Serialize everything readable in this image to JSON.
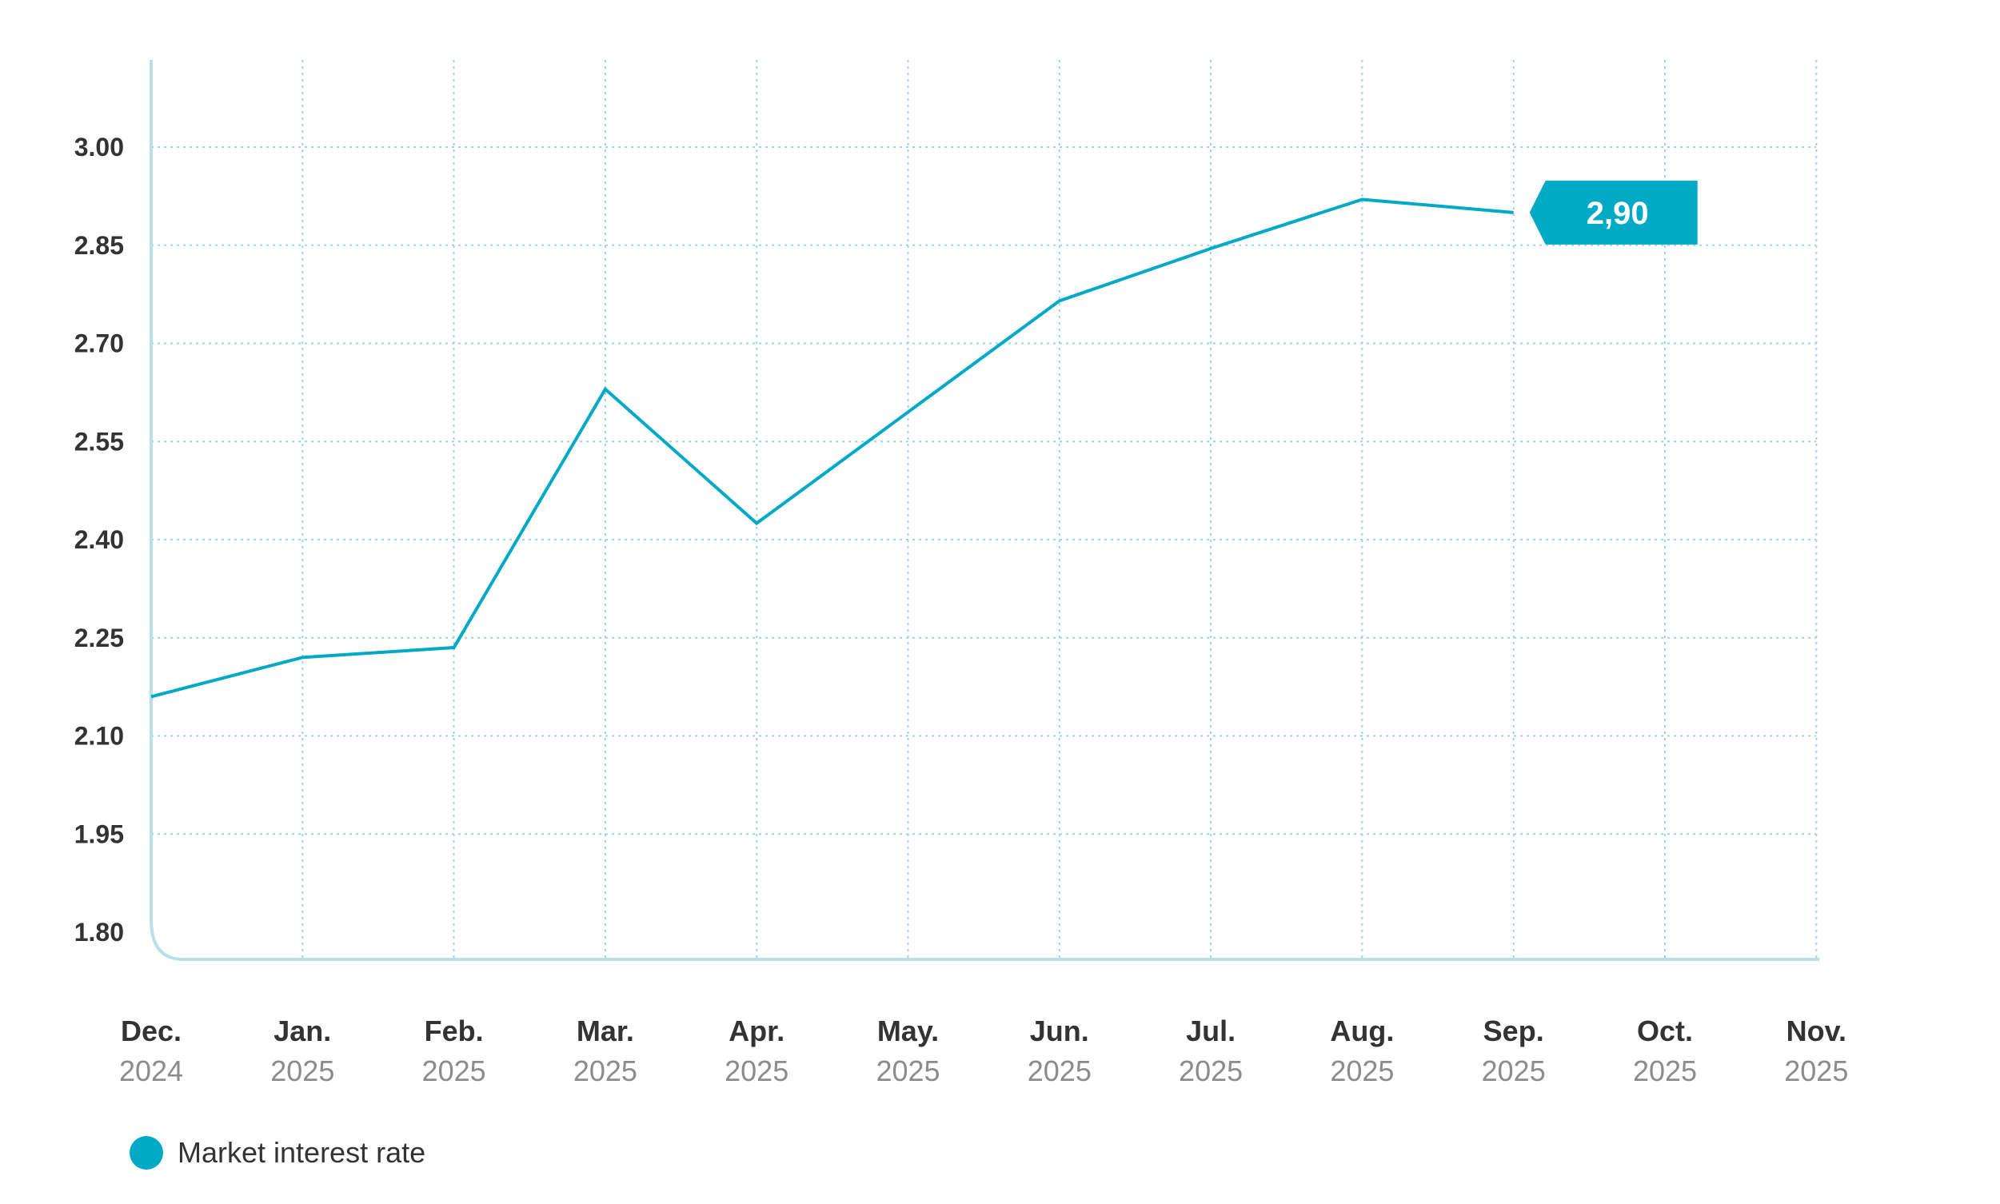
{
  "chart_data": {
    "type": "line",
    "x": [
      "Dec. 2024",
      "Jan. 2025",
      "Feb. 2025",
      "Mar. 2025",
      "Apr. 2025",
      "May. 2025",
      "Jun. 2025",
      "Jul. 2025",
      "Aug. 2025",
      "Sep. 2025",
      "Oct. 2025",
      "Nov. 2025"
    ],
    "x_months": [
      "Dec.",
      "Jan.",
      "Feb.",
      "Mar.",
      "Apr.",
      "May.",
      "Jun.",
      "Jul.",
      "Aug.",
      "Sep.",
      "Oct.",
      "Nov."
    ],
    "x_years": [
      "2024",
      "2025",
      "2025",
      "2025",
      "2025",
      "2025",
      "2025",
      "2025",
      "2025",
      "2025",
      "2025",
      "2025"
    ],
    "y_ticks": [
      "1.80",
      "1.95",
      "2.10",
      "2.25",
      "2.40",
      "2.55",
      "2.70",
      "2.85",
      "3.00"
    ],
    "ylim": [
      1.76,
      3.13
    ],
    "series": [
      {
        "name": "Market interest rate",
        "color": "#00a9c5",
        "values": [
          2.16,
          2.22,
          2.235,
          2.63,
          2.425,
          2.595,
          2.765,
          2.845,
          2.92,
          2.9,
          null,
          null
        ]
      }
    ],
    "callout": {
      "label": "2,90",
      "x_index": 9
    },
    "grid": true,
    "legend_position": "bottom-left"
  },
  "colors": {
    "line": "#00a9c5",
    "grid": "#9fd3ea",
    "axis": "#b9dfe8",
    "callout": "#00a9c5"
  }
}
